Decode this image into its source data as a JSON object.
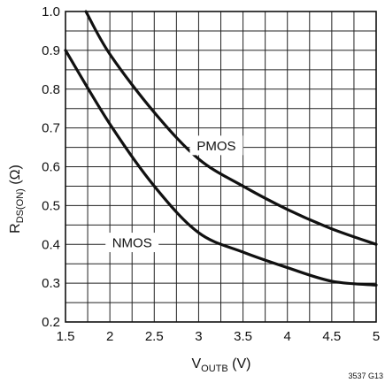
{
  "chart_data": {
    "type": "line",
    "title": "",
    "xlabel": {
      "main": "V",
      "sub": "OUTB",
      "unit": " (V)"
    },
    "ylabel": {
      "main": "R",
      "sub": "DS(ON)",
      "unit": " (Ω)"
    },
    "xlim": [
      1.5,
      5
    ],
    "ylim": [
      0.2,
      1.0
    ],
    "x_ticks": [
      1.5,
      2,
      2.5,
      3,
      3.5,
      4,
      4.5,
      5
    ],
    "x_tick_labels": [
      "1.5",
      "2",
      "2.5",
      "3",
      "3.5",
      "4",
      "4.5",
      "5"
    ],
    "y_ticks": [
      0.2,
      0.3,
      0.4,
      0.5,
      0.6,
      0.7,
      0.8,
      0.9,
      1.0
    ],
    "y_tick_labels": [
      "0.2",
      "0.3",
      "0.4",
      "0.5",
      "0.6",
      "0.7",
      "0.8",
      "0.9",
      "1.0"
    ],
    "grid": {
      "x_step": 0.25,
      "y_step": 0.05
    },
    "series": [
      {
        "name": "PMOS",
        "x": [
          1.73,
          2.0,
          2.5,
          3.0,
          3.5,
          4.0,
          4.5,
          5.0
        ],
        "y": [
          1.0,
          0.89,
          0.74,
          0.62,
          0.55,
          0.49,
          0.44,
          0.4
        ]
      },
      {
        "name": "NMOS",
        "x": [
          1.5,
          2.0,
          2.5,
          3.0,
          3.5,
          4.0,
          4.5,
          5.0
        ],
        "y": [
          0.9,
          0.71,
          0.55,
          0.43,
          0.38,
          0.34,
          0.305,
          0.295
        ]
      }
    ],
    "series_label_positions": [
      {
        "name": "PMOS",
        "x": 3.2,
        "y": 0.655
      },
      {
        "name": "NMOS",
        "x": 2.25,
        "y": 0.405
      }
    ],
    "figure_note": "3537 G13"
  }
}
